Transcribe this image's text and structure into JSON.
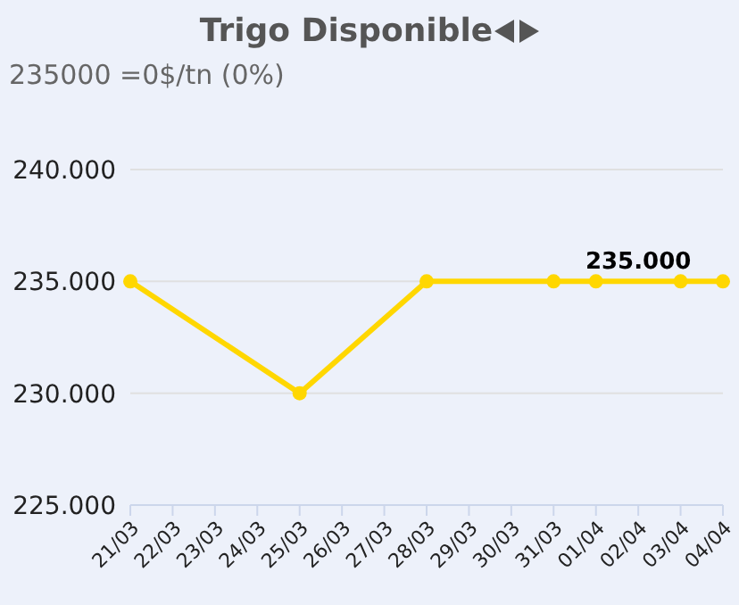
{
  "chart_data": {
    "type": "line",
    "title": "Trigo Disponible",
    "subtitle": "235000 =0$/tn (0%)",
    "categories": [
      "21/03",
      "22/03",
      "23/03",
      "24/03",
      "25/03",
      "26/03",
      "27/03",
      "28/03",
      "29/03",
      "30/03",
      "31/03",
      "01/04",
      "02/04",
      "03/04",
      "04/04"
    ],
    "series": [
      {
        "color": "#ffd700",
        "values": [
          235000,
          null,
          null,
          null,
          230000,
          null,
          null,
          235000,
          null,
          null,
          235000,
          235000,
          null,
          235000,
          235000
        ]
      }
    ],
    "ylim": [
      225000,
      240000
    ],
    "yticks": [
      {
        "value": 225000,
        "label": "225.000"
      },
      {
        "value": 230000,
        "label": "230.000"
      },
      {
        "value": 235000,
        "label": "235.000"
      },
      {
        "value": 240000,
        "label": "240.000"
      }
    ],
    "annotations": [
      {
        "text": "235.000",
        "x": "02/04",
        "y": 235000
      }
    ],
    "grid": "y",
    "legend": false,
    "marker": "circle",
    "line_style": "solid"
  }
}
